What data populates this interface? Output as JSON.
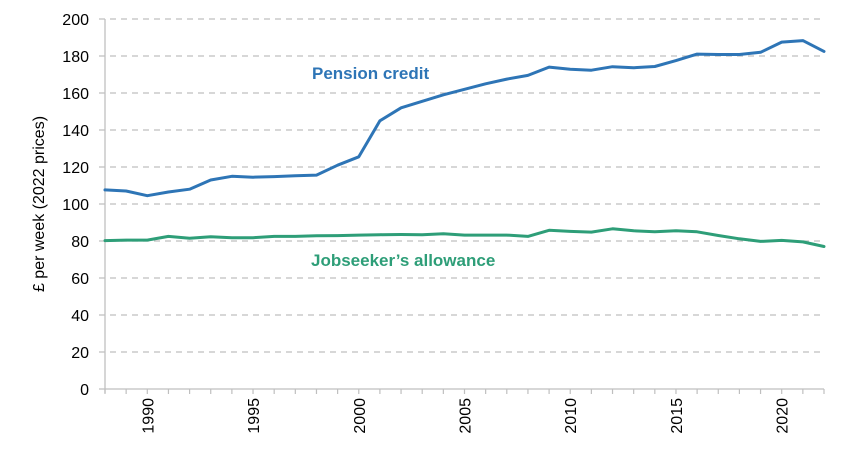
{
  "chart_data": {
    "type": "line",
    "title": "",
    "xlabel": "",
    "ylabel": "£ per week (2022 prices)",
    "ylim": [
      0,
      200
    ],
    "xlim": [
      1988,
      2022
    ],
    "yticks": [
      0,
      20,
      40,
      60,
      80,
      100,
      120,
      140,
      160,
      180,
      200
    ],
    "xtick_labels": [
      "1990",
      "1995",
      "2000",
      "2005",
      "2010",
      "2015",
      "2020"
    ],
    "grid": "horizontal dashed",
    "legend": "inline labels",
    "x": [
      1988,
      1989,
      1990,
      1991,
      1992,
      1993,
      1994,
      1995,
      1996,
      1997,
      1998,
      1999,
      2000,
      2001,
      2002,
      2003,
      2004,
      2005,
      2006,
      2007,
      2008,
      2009,
      2010,
      2011,
      2012,
      2013,
      2014,
      2015,
      2016,
      2017,
      2018,
      2019,
      2020,
      2021,
      2022
    ],
    "series": [
      {
        "name": "Pension credit",
        "color": "#2E75B6",
        "values": [
          107.6,
          107.0,
          104.5,
          106.5,
          108.0,
          113.0,
          115.0,
          114.5,
          114.8,
          115.3,
          115.6,
          121.0,
          125.5,
          145.0,
          152.0,
          155.5,
          159.0,
          162.0,
          165.0,
          167.5,
          169.5,
          174.0,
          172.8,
          172.3,
          174.2,
          173.7,
          174.3,
          177.5,
          181.0,
          180.8,
          180.8,
          182.0,
          187.5,
          188.3,
          182.5
        ]
      },
      {
        "name": "Jobseeker’s allowance",
        "color": "#2E9E78",
        "values": [
          80.2,
          80.5,
          80.5,
          82.5,
          81.5,
          82.3,
          81.8,
          81.8,
          82.5,
          82.5,
          82.8,
          82.9,
          83.2,
          83.4,
          83.5,
          83.4,
          83.9,
          83.2,
          83.2,
          83.2,
          82.5,
          85.8,
          85.2,
          84.8,
          86.6,
          85.5,
          85.0,
          85.5,
          85.0,
          83.0,
          81.2,
          79.8,
          80.3,
          79.5,
          77.0
        ]
      }
    ],
    "annotations": [
      {
        "text": "Pension credit",
        "series": 0
      },
      {
        "text": "Jobseeker’s allowance",
        "series": 1
      }
    ]
  },
  "labels": {
    "ylabel": "£ per week (2022 prices)",
    "pension": "Pension credit",
    "jsa": "Jobseeker’s allowance"
  }
}
